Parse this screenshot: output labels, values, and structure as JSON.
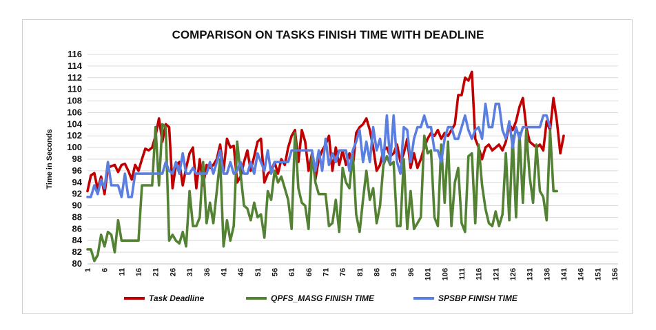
{
  "chart_data": {
    "type": "line",
    "title": "COMPARISON ON TASKS FINISH TIME WITH DEADLINE",
    "xlabel": "",
    "ylabel": "Time in Seconds",
    "ylim": [
      80,
      116
    ],
    "yticks": [
      80,
      82,
      84,
      86,
      88,
      90,
      92,
      94,
      96,
      98,
      100,
      102,
      104,
      106,
      108,
      110,
      112,
      114,
      116
    ],
    "xticks": [
      1,
      6,
      11,
      16,
      21,
      26,
      31,
      36,
      41,
      46,
      51,
      56,
      61,
      66,
      71,
      76,
      81,
      86,
      91,
      96,
      101,
      106,
      111,
      116,
      121,
      126,
      131,
      136,
      141,
      146,
      151,
      156
    ],
    "xlim": [
      1,
      157
    ],
    "grid": true,
    "legend_position": "bottom",
    "series": [
      {
        "name": "Task Deadline",
        "color": "#c00000",
        "x_start": 1,
        "values": [
          92.5,
          95.2,
          95.6,
          92.8,
          95.0,
          92.0,
          96.5,
          96.8,
          97.0,
          95.8,
          97.0,
          97.2,
          96.0,
          94.5,
          97.0,
          96.0,
          98.0,
          99.8,
          99.5,
          100.0,
          102.0,
          105.0,
          101.0,
          104.0,
          103.5,
          93.0,
          97.0,
          97.5,
          93.5,
          96.5,
          99.0,
          100.0,
          93.0,
          98.0,
          93.5,
          97.0,
          96.5,
          97.0,
          98.0,
          100.5,
          96.0,
          101.5,
          100.0,
          100.3,
          94.0,
          95.0,
          97.5,
          99.5,
          96.0,
          98.5,
          101.0,
          101.5,
          94.0,
          95.5,
          96.0,
          97.5,
          95.5,
          98.0,
          97.0,
          100.0,
          102.0,
          103.0,
          97.5,
          103.0,
          101.0,
          96.0,
          99.0,
          94.5,
          98.0,
          99.5,
          100.5,
          102.0,
          96.0,
          100.0,
          97.0,
          99.5,
          97.0,
          99.0,
          96.5,
          102.5,
          103.5,
          104.0,
          105.0,
          103.0,
          100.0,
          96.0,
          97.0,
          99.5,
          100.0,
          98.5,
          99.0,
          100.5,
          97.5,
          99.0,
          101.5,
          96.5,
          99.0,
          96.5,
          98.0,
          100.0,
          101.5,
          102.5,
          102.0,
          103.0,
          101.5,
          102.5,
          102.0,
          103.0,
          104.0,
          109.0,
          109.0,
          112.0,
          111.5,
          113.0,
          101.5,
          100.0,
          98.0,
          100.0,
          100.5,
          99.5,
          100.0,
          100.5,
          99.5,
          101.0,
          104.0,
          103.0,
          104.5,
          107.0,
          108.5,
          103.5,
          101.0,
          100.5,
          100.0,
          100.5,
          99.5,
          104.5,
          103.0,
          108.5,
          104.5,
          99.0,
          102.0
        ]
      },
      {
        "name": "QPFS_MASG  FINISH TIME",
        "color": "#548235",
        "x_start": 1,
        "values": [
          82.5,
          82.5,
          80.5,
          81.5,
          85.0,
          83.0,
          85.5,
          85.0,
          82.0,
          87.5,
          84.0,
          84.0,
          84.0,
          84.0,
          84.0,
          84.0,
          93.5,
          93.5,
          93.5,
          93.5,
          103.5,
          93.5,
          104.0,
          103.5,
          84.0,
          85.0,
          84.0,
          83.5,
          85.5,
          83.0,
          92.5,
          86.5,
          86.5,
          88.0,
          97.5,
          87.0,
          90.5,
          87.0,
          92.5,
          98.0,
          83.0,
          87.5,
          84.0,
          86.5,
          101.0,
          95.5,
          90.0,
          89.5,
          87.5,
          90.5,
          88.0,
          88.5,
          84.5,
          92.5,
          91.0,
          96.0,
          94.0,
          95.0,
          93.0,
          91.0,
          86.0,
          102.5,
          93.0,
          90.5,
          90.0,
          86.0,
          99.0,
          94.0,
          92.0,
          92.0,
          92.0,
          86.5,
          87.0,
          91.0,
          85.5,
          96.5,
          94.0,
          93.0,
          99.0,
          88.5,
          85.5,
          91.0,
          96.0,
          91.0,
          93.0,
          87.0,
          90.0,
          97.0,
          98.5,
          97.0,
          97.5,
          86.5,
          86.5,
          98.0,
          86.0,
          92.5,
          86.0,
          87.0,
          88.0,
          102.0,
          99.0,
          99.5,
          88.0,
          86.5,
          100.5,
          90.5,
          101.0,
          86.5,
          94.0,
          96.5,
          87.0,
          85.5,
          98.5,
          99.0,
          87.0,
          100.5,
          93.5,
          89.5,
          87.0,
          86.5,
          89.0,
          86.5,
          88.5,
          99.0,
          87.5,
          102.0,
          88.0,
          102.5,
          90.5,
          103.0,
          95.0,
          90.5,
          100.5,
          92.5,
          91.5,
          87.5,
          103.0,
          92.5,
          92.5
        ]
      },
      {
        "name": "SPSBP FINISH TIME",
        "color": "#5b7fe0",
        "x_start": 1,
        "values": [
          91.5,
          91.5,
          93.5,
          92.0,
          94.5,
          93.0,
          97.5,
          93.5,
          93.5,
          93.5,
          91.5,
          95.5,
          91.5,
          91.5,
          95.5,
          95.5,
          95.5,
          95.5,
          95.5,
          95.5,
          95.5,
          95.5,
          95.5,
          97.5,
          96.0,
          95.5,
          97.5,
          95.5,
          99.0,
          95.5,
          95.5,
          96.5,
          95.5,
          95.5,
          95.5,
          95.5,
          97.5,
          95.5,
          97.5,
          99.5,
          95.5,
          95.5,
          97.5,
          95.5,
          96.0,
          97.5,
          95.5,
          95.5,
          97.5,
          95.5,
          99.0,
          97.5,
          96.0,
          99.5,
          95.5,
          97.5,
          97.5,
          97.5,
          97.5,
          97.5,
          99.5,
          99.5,
          99.5,
          99.5,
          99.5,
          99.5,
          99.5,
          96.0,
          99.5,
          96.0,
          101.5,
          97.0,
          99.0,
          97.5,
          99.5,
          99.5,
          99.5,
          96.0,
          99.5,
          101.0,
          103.0,
          97.5,
          101.0,
          97.5,
          103.5,
          99.5,
          101.5,
          97.5,
          105.5,
          97.5,
          105.5,
          97.5,
          95.5,
          103.5,
          103.0,
          97.5,
          101.5,
          103.5,
          103.5,
          105.5,
          103.5,
          103.5,
          99.5,
          99.5,
          97.5,
          101.5,
          103.5,
          103.5,
          101.5,
          101.5,
          103.5,
          105.5,
          103.0,
          101.5,
          103.0,
          103.5,
          101.5,
          107.5,
          103.5,
          103.5,
          107.5,
          107.5,
          103.0,
          101.5,
          104.5,
          100.0,
          103.5,
          101.5,
          103.5,
          103.5,
          103.5,
          103.5,
          103.5,
          103.5,
          105.5,
          105.5,
          103.5
        ]
      }
    ]
  }
}
